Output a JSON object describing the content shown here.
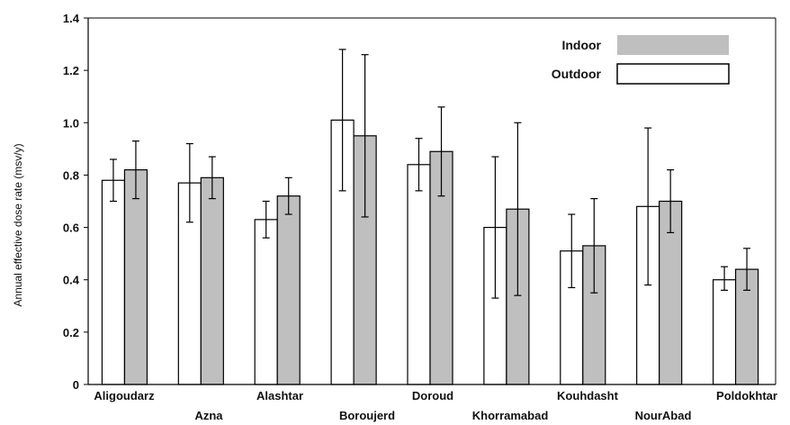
{
  "chart_data": {
    "type": "bar",
    "ylabel": "Annual effective dose rate (msv/y)",
    "ylim": [
      0,
      1.4
    ],
    "yticks": [
      "0",
      "0.2",
      "0.4",
      "0.6",
      "0.8",
      "1.0",
      "1.2",
      "1.4"
    ],
    "categories": [
      "Aligoudarz",
      "Azna",
      "Alashtar",
      "Boroujerd",
      "Doroud",
      "Khorramabad",
      "Kouhdasht",
      "NourAbad",
      "Poldokhtar"
    ],
    "legend_position": "top-right",
    "series": [
      {
        "name": "Outdoor",
        "color": "#ffffff",
        "values": [
          0.78,
          0.77,
          0.63,
          1.01,
          0.84,
          0.6,
          0.51,
          0.68,
          0.4
        ],
        "error_low": [
          0.7,
          0.62,
          0.56,
          0.74,
          0.74,
          0.33,
          0.37,
          0.38,
          0.36
        ],
        "error_high": [
          0.86,
          0.92,
          0.7,
          1.28,
          0.94,
          0.87,
          0.65,
          0.98,
          0.45
        ]
      },
      {
        "name": "Indoor",
        "color": "#bfbfbf",
        "values": [
          0.82,
          0.79,
          0.72,
          0.95,
          0.89,
          0.67,
          0.53,
          0.7,
          0.44
        ],
        "error_low": [
          0.71,
          0.71,
          0.65,
          0.64,
          0.72,
          0.34,
          0.35,
          0.58,
          0.36
        ],
        "error_high": [
          0.93,
          0.87,
          0.79,
          1.26,
          1.06,
          1.0,
          0.71,
          0.82,
          0.52
        ]
      }
    ]
  }
}
